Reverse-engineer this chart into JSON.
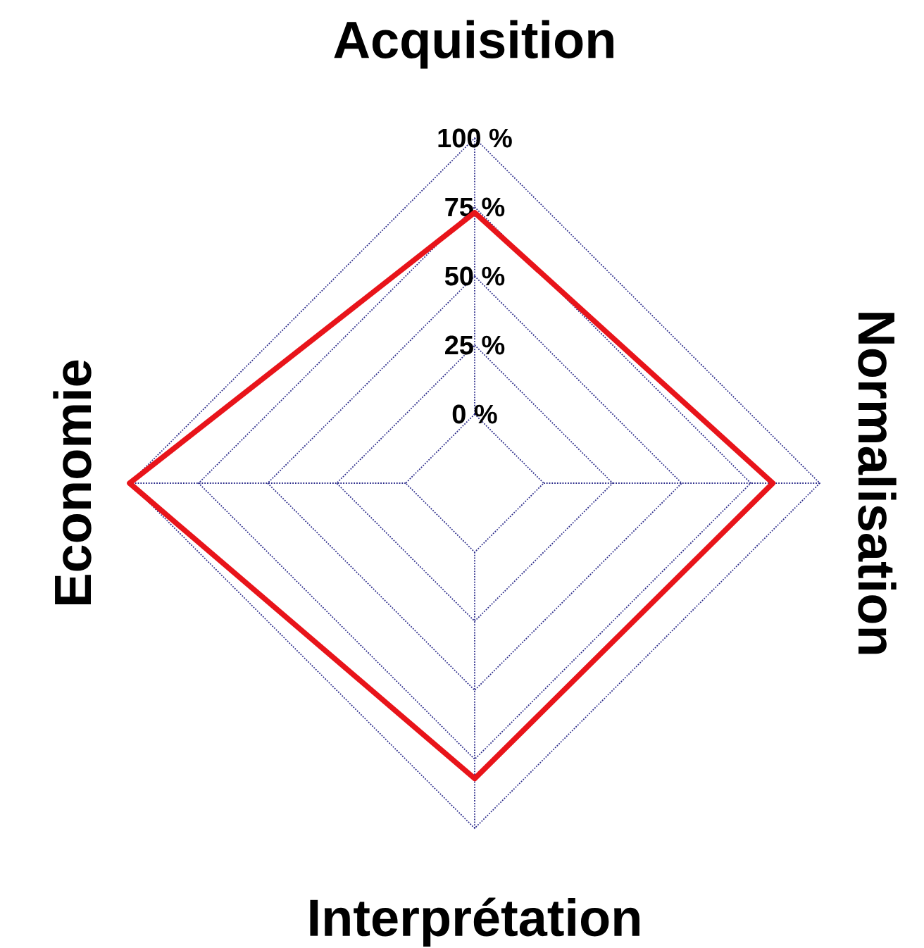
{
  "chart_data": {
    "type": "radar",
    "categories": [
      "Acquisition",
      "Normalisation",
      "Interprétation",
      "Economie"
    ],
    "series": [
      {
        "color": "#e8141a",
        "values": [
          73,
          83,
          82,
          100
        ]
      }
    ],
    "ylim": [
      -25,
      100
    ],
    "yticks": [
      {
        "value": 0,
        "label": "0 %"
      },
      {
        "value": 25,
        "label": "25 %"
      },
      {
        "value": 50,
        "label": "50 %"
      },
      {
        "value": 75,
        "label": "75 %"
      },
      {
        "value": 100,
        "label": "100 %"
      }
    ],
    "grid": true
  }
}
